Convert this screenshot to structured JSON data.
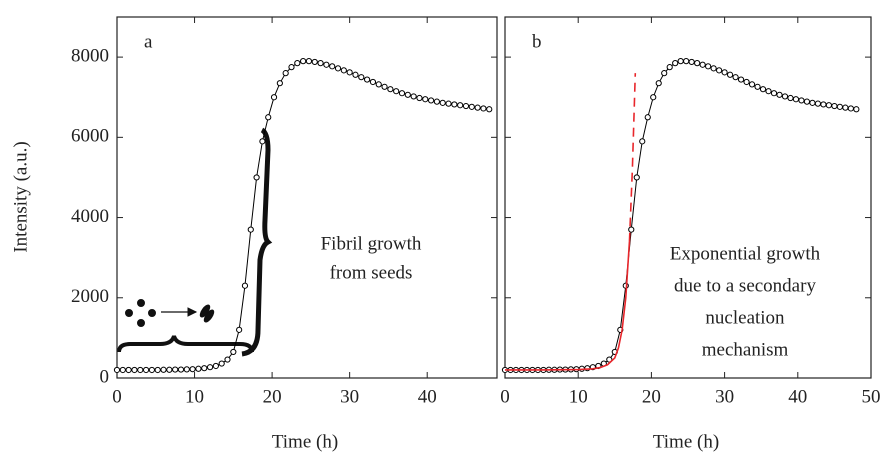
{
  "chart_data": [
    {
      "type": "line",
      "panel": "a",
      "ylabel": "Intensity (a.u.)",
      "xlabel": "Time (h)",
      "xlim": [
        0,
        49
      ],
      "xticks": [
        0,
        10,
        20,
        30,
        40
      ],
      "ylim": [
        0,
        9000
      ],
      "yticks": [
        0,
        2000,
        4000,
        6000,
        8000
      ],
      "show_ytick_labels": true,
      "annotation": [
        "Fibril growth",
        "from seeds"
      ],
      "series": [
        {
          "color": "#000000",
          "marker": "circle",
          "style": "solid",
          "x": [
            0,
            0.75,
            1.5,
            2.25,
            3,
            3.75,
            4.5,
            5.25,
            6,
            6.75,
            7.5,
            8.25,
            9,
            9.75,
            10.5,
            11.25,
            12,
            12.75,
            13.5,
            14.25,
            15,
            15.75,
            16.5,
            17.25,
            18,
            18.75,
            19.5,
            20.25,
            21,
            21.75,
            22.5,
            23.25,
            24,
            24.75,
            25.5,
            26.25,
            27,
            27.75,
            28.5,
            29.25,
            30,
            30.75,
            31.5,
            32.25,
            33,
            33.75,
            34.5,
            35.25,
            36,
            36.75,
            37.5,
            38.25,
            39,
            39.75,
            40.5,
            41.25,
            42,
            42.75,
            43.5,
            44.25,
            45,
            45.75,
            46.5,
            47.25,
            48
          ],
          "values": [
            200,
            200,
            200,
            200,
            200,
            200,
            200,
            200,
            205,
            205,
            210,
            210,
            215,
            220,
            230,
            245,
            270,
            300,
            360,
            460,
            650,
            1200,
            2300,
            3700,
            5000,
            5900,
            6500,
            7000,
            7350,
            7600,
            7750,
            7850,
            7900,
            7900,
            7880,
            7850,
            7810,
            7770,
            7720,
            7670,
            7620,
            7560,
            7500,
            7440,
            7380,
            7320,
            7260,
            7200,
            7150,
            7100,
            7060,
            7020,
            6980,
            6950,
            6920,
            6890,
            6860,
            6840,
            6820,
            6800,
            6780,
            6760,
            6740,
            6720,
            6700
          ]
        }
      ]
    },
    {
      "type": "line",
      "panel": "b",
      "xlabel": "Time (h)",
      "xlim": [
        0,
        50
      ],
      "xticks": [
        0,
        10,
        20,
        30,
        40,
        50
      ],
      "ylim": [
        0,
        9000
      ],
      "yticks": [
        0,
        2000,
        4000,
        6000,
        8000
      ],
      "show_ytick_labels": false,
      "annotation": [
        "Exponential growth",
        "due to a secondary",
        "nucleation",
        "mechanism"
      ],
      "series": [
        {
          "color": "#000000",
          "marker": "circle",
          "style": "solid",
          "x": [
            0,
            0.75,
            1.5,
            2.25,
            3,
            3.75,
            4.5,
            5.25,
            6,
            6.75,
            7.5,
            8.25,
            9,
            9.75,
            10.5,
            11.25,
            12,
            12.75,
            13.5,
            14.25,
            15,
            15.75,
            16.5,
            17.25,
            18,
            18.75,
            19.5,
            20.25,
            21,
            21.75,
            22.5,
            23.25,
            24,
            24.75,
            25.5,
            26.25,
            27,
            27.75,
            28.5,
            29.25,
            30,
            30.75,
            31.5,
            32.25,
            33,
            33.75,
            34.5,
            35.25,
            36,
            36.75,
            37.5,
            38.25,
            39,
            39.75,
            40.5,
            41.25,
            42,
            42.75,
            43.5,
            44.25,
            45,
            45.75,
            46.5,
            47.25,
            48
          ],
          "values": [
            200,
            200,
            200,
            200,
            200,
            200,
            200,
            200,
            205,
            205,
            210,
            210,
            215,
            220,
            230,
            245,
            270,
            300,
            360,
            460,
            650,
            1200,
            2300,
            3700,
            5000,
            5900,
            6500,
            7000,
            7350,
            7600,
            7750,
            7850,
            7900,
            7900,
            7880,
            7850,
            7810,
            7770,
            7720,
            7670,
            7620,
            7560,
            7500,
            7440,
            7380,
            7320,
            7260,
            7200,
            7150,
            7100,
            7060,
            7020,
            6980,
            6950,
            6920,
            6890,
            6860,
            6840,
            6820,
            6800,
            6780,
            6760,
            6740,
            6720,
            6700
          ]
        },
        {
          "color": "#e8262b",
          "marker": "none",
          "style": "solid",
          "x": [
            0,
            5,
            10,
            12,
            13,
            14,
            15,
            15.5,
            16,
            16.5,
            17
          ],
          "values": [
            200,
            200,
            210,
            230,
            260,
            330,
            500,
            750,
            1200,
            2000,
            3400
          ]
        },
        {
          "color": "#e8262b",
          "marker": "none",
          "style": "dashed",
          "x": [
            17,
            17.4,
            17.8
          ],
          "values": [
            3400,
            5200,
            7600
          ]
        }
      ]
    }
  ]
}
